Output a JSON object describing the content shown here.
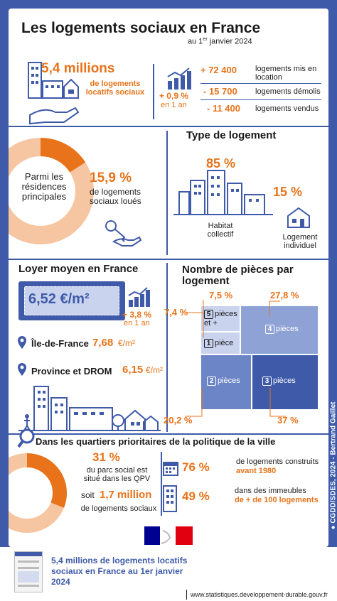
{
  "header": {
    "title": "Les logements sociaux en France",
    "subtitle_pre": "au 1",
    "subtitle_sup": "er",
    "subtitle_post": " janvier 2024"
  },
  "stock": {
    "value": "5,4 millions",
    "label": "de logements locatifs sociaux"
  },
  "evolution": {
    "rate": "+ 0,9 %",
    "period": "en 1 an",
    "rows": [
      {
        "value": "+ 72 400",
        "label": "logements mis en location"
      },
      {
        "value": "- 15 700",
        "label": "logements démolis"
      },
      {
        "value": "- 11 400",
        "label": "logements vendus"
      }
    ]
  },
  "residences": {
    "intro": "Parmi les résidences principales",
    "value": "15,9 %",
    "label": "de logements sociaux loués",
    "fraction": 0.159
  },
  "housing_type": {
    "title": "Type de logement",
    "collective": {
      "value": "85 %",
      "label": "Habitat collectif"
    },
    "individual": {
      "value": "15 %",
      "label": "Logement individuel"
    }
  },
  "rent": {
    "title": "Loyer moyen en France",
    "value": "6,52 €/m²",
    "rate": "+ 3,8 %",
    "period": "en 1 an",
    "idf_label": "Île-de-France",
    "idf_value": "7,68",
    "idf_unit": "€/m²",
    "prov_label": "Province et DROM",
    "prov_value": "6,15",
    "prov_unit": "€/m²"
  },
  "rooms": {
    "title": "Nombre de pièces par logement",
    "cells": [
      {
        "num": "5",
        "label": "pièces et +",
        "pct": "7,5 %"
      },
      {
        "num": "1",
        "label": "pièce",
        "pct": "7,4 %"
      },
      {
        "num": "4",
        "label": "pièces",
        "pct": "27,8 %"
      },
      {
        "num": "2",
        "label": "pièces",
        "pct": "20,2 %"
      },
      {
        "num": "3",
        "label": "pièces",
        "pct": "37 %"
      }
    ]
  },
  "qpv": {
    "title": "Dans les quartiers prioritaires de la politique de la ville",
    "pct": "31 %",
    "pct_label": "du parc social est situé dans les QPV",
    "soit": "soit",
    "count": "1,7 million",
    "count_label": "de logements sociaux",
    "fraction": 0.31,
    "before1980_value": "76 %",
    "before1980_label": "de logements construits",
    "before1980_bold": "avant 1980",
    "big_value": "49 %",
    "big_label": "dans des immeubles",
    "big_bold": "de + de 100 logements"
  },
  "credit": "● CGDD/SDES, 2024 - Bertrand Gaillet",
  "footer": {
    "pub_title": "5,4 millions de logements locatifs sociaux en France au 1er janvier 2024",
    "url": "www.statistiques.developpement-durable.gouv.fr"
  },
  "colors": {
    "blue": "#3e5aa8",
    "orange": "#e8731a",
    "light_blue": "#c9d3ee"
  }
}
